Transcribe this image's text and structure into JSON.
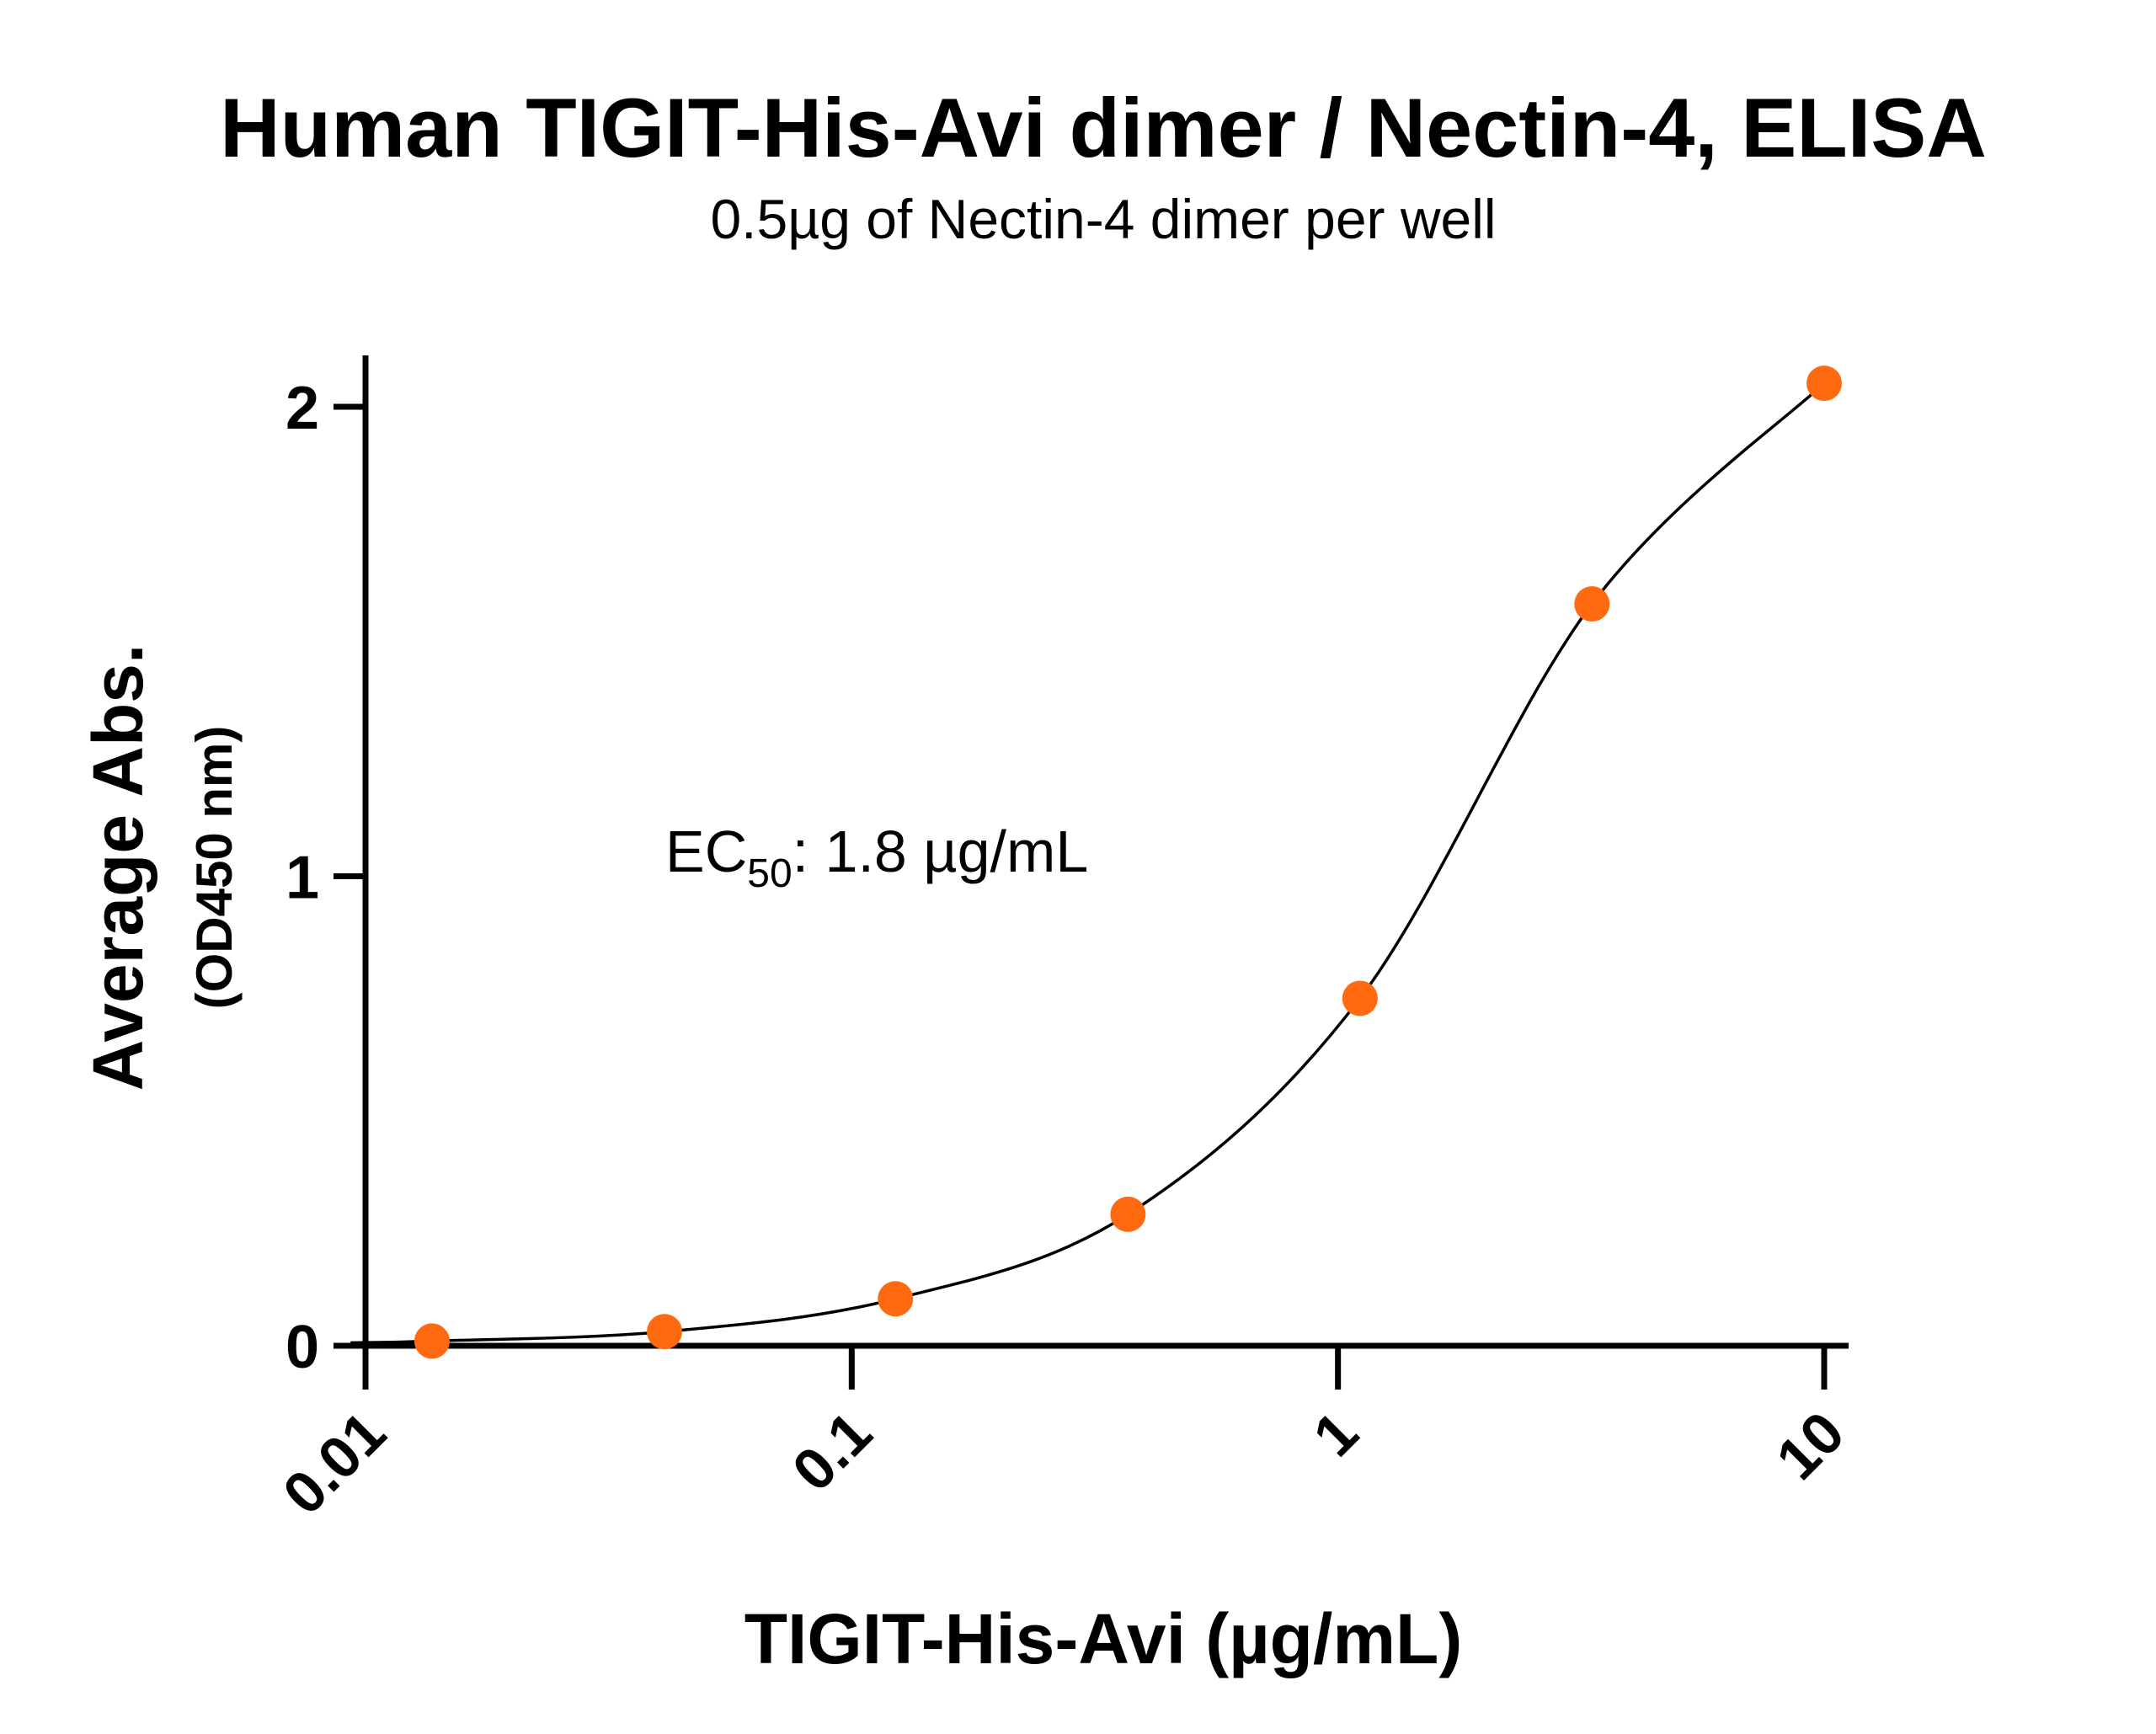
{
  "chart_data": {
    "type": "scatter",
    "title": "Human TIGIT-His-Avi dimer / Nectin-4, ELISA",
    "subtitle": "0.5µg of Nectin-4 dimer per well",
    "xlabel": "TIGIT-His-Avi (µg/mL)",
    "ylabel": "Average Abs.",
    "ylabel_unit": "(OD450 nm)",
    "x_scale": "log",
    "xlim": [
      0.01,
      10
    ],
    "ylim": [
      0,
      2
    ],
    "x_ticks": [
      0.01,
      0.1,
      1,
      10
    ],
    "x_tick_labels": [
      "0.01",
      "0.1",
      "1",
      "10"
    ],
    "y_ticks": [
      0,
      1,
      2
    ],
    "y_tick_labels": [
      "0",
      "1",
      "2"
    ],
    "grid": false,
    "annotation": {
      "prefix": "EC",
      "subscript": "50",
      "suffix": ": 1.8 µg/mL"
    },
    "series": [
      {
        "marker_color": "#FF6A10",
        "line_color": "#000000",
        "points": [
          {
            "x": 0.0137,
            "y": 0.01
          },
          {
            "x": 0.0412,
            "y": 0.03
          },
          {
            "x": 0.123,
            "y": 0.1
          },
          {
            "x": 0.37,
            "y": 0.28
          },
          {
            "x": 1.11,
            "y": 0.74
          },
          {
            "x": 3.33,
            "y": 1.58
          },
          {
            "x": 10.0,
            "y": 2.05
          }
        ]
      }
    ]
  }
}
